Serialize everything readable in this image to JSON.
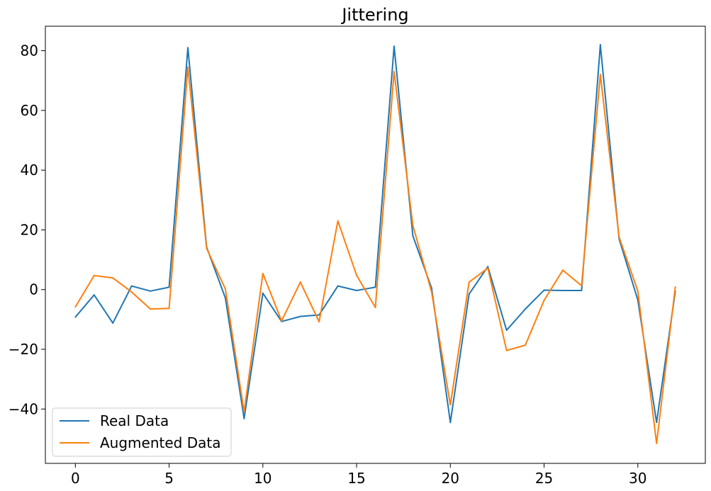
{
  "chart_data": {
    "type": "line",
    "title": "Jittering",
    "xlabel": "",
    "ylabel": "",
    "xlim": [
      -1.6,
      33.6
    ],
    "ylim": [
      -58.2,
      88.2
    ],
    "x_ticks": [
      0,
      5,
      10,
      15,
      20,
      25,
      30
    ],
    "y_ticks": [
      -40,
      -20,
      0,
      20,
      40,
      60,
      80
    ],
    "x_tick_labels": [
      "0",
      "5",
      "10",
      "15",
      "20",
      "25",
      "30"
    ],
    "y_tick_labels": [
      "−40",
      "−20",
      "0",
      "20",
      "40",
      "60",
      "80"
    ],
    "grid": false,
    "legend_position": "lower-left",
    "x": [
      0,
      1,
      2,
      3,
      4,
      5,
      6,
      7,
      8,
      9,
      10,
      11,
      12,
      13,
      14,
      15,
      16,
      17,
      18,
      19,
      20,
      21,
      22,
      23,
      24,
      25,
      26,
      27,
      28,
      29,
      30,
      31,
      32
    ],
    "series": [
      {
        "name": "Real Data",
        "color": "#1f77b4",
        "values": [
          -9.2,
          -1.8,
          -11.2,
          1.2,
          -0.5,
          0.8,
          81.0,
          14.2,
          -2.8,
          -43.2,
          -1.2,
          -10.7,
          -9.0,
          -8.5,
          1.2,
          -0.3,
          0.8,
          81.5,
          18.0,
          0.5,
          -44.5,
          -1.5,
          7.7,
          -13.6,
          -6.5,
          -0.2,
          -0.3,
          -0.3,
          82.0,
          17.0,
          -3.5,
          -44.5,
          -0.5
        ]
      },
      {
        "name": "Augmented Data",
        "color": "#ff7f0e",
        "values": [
          -5.8,
          4.7,
          3.9,
          -0.8,
          -6.5,
          -6.3,
          74.5,
          13.8,
          0.2,
          -41.0,
          5.4,
          -10.5,
          2.5,
          -10.8,
          23.0,
          4.8,
          -6.0,
          73.0,
          21.5,
          -0.8,
          -38.6,
          2.5,
          7.2,
          -20.4,
          -18.6,
          -3.6,
          6.5,
          1.3,
          72.0,
          17.6,
          -0.5,
          -51.5,
          0.9
        ]
      }
    ]
  }
}
